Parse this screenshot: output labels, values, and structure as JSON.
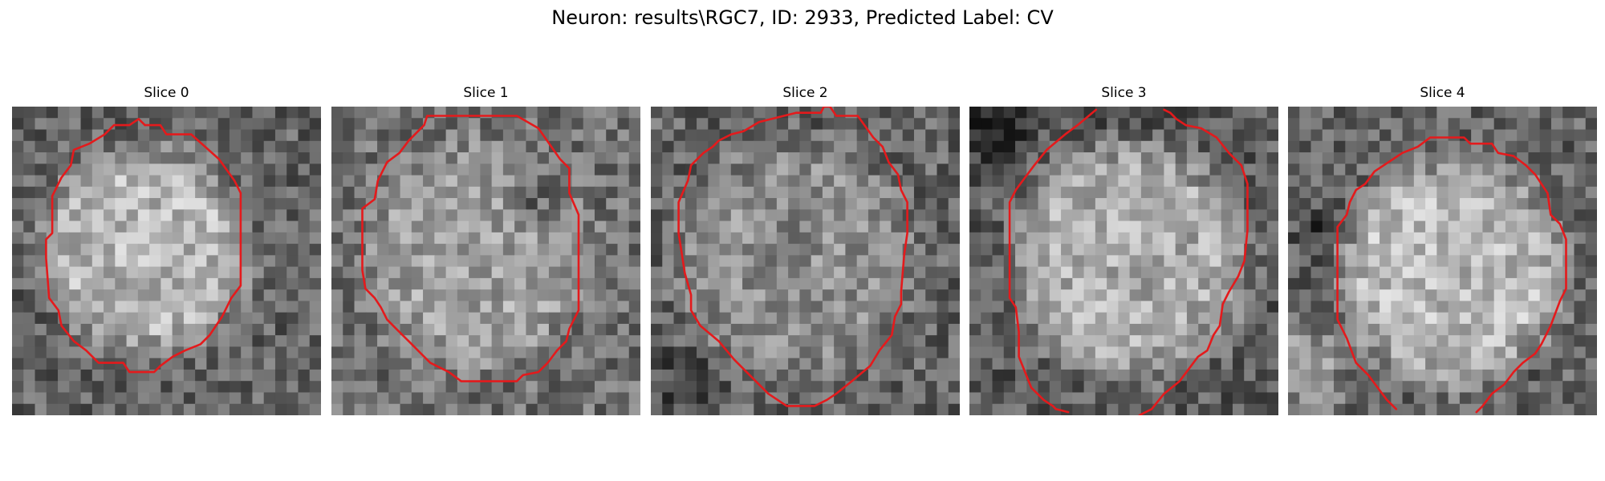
{
  "figure": {
    "title": "Neuron: results\\RGC7, ID: 2933, Predicted Label: CV"
  },
  "panels": [
    {
      "title": "Slice 0",
      "image_description": "grayscale noisy microscopy crop with a bright round cell body",
      "outline_color": "#e41a1c",
      "contour": [
        [
          0.43,
          0.06
        ],
        [
          0.48,
          0.06
        ],
        [
          0.5,
          0.09
        ],
        [
          0.58,
          0.09
        ],
        [
          0.67,
          0.17
        ],
        [
          0.72,
          0.24
        ],
        [
          0.74,
          0.28
        ],
        [
          0.74,
          0.58
        ],
        [
          0.71,
          0.62
        ],
        [
          0.68,
          0.68
        ],
        [
          0.64,
          0.74
        ],
        [
          0.61,
          0.77
        ],
        [
          0.56,
          0.79
        ],
        [
          0.52,
          0.81
        ],
        [
          0.48,
          0.84
        ],
        [
          0.46,
          0.86
        ],
        [
          0.38,
          0.86
        ],
        [
          0.36,
          0.83
        ],
        [
          0.28,
          0.83
        ],
        [
          0.24,
          0.79
        ],
        [
          0.2,
          0.76
        ],
        [
          0.16,
          0.71
        ],
        [
          0.15,
          0.66
        ],
        [
          0.12,
          0.62
        ],
        [
          0.11,
          0.49
        ],
        [
          0.11,
          0.43
        ],
        [
          0.13,
          0.41
        ],
        [
          0.13,
          0.29
        ],
        [
          0.16,
          0.23
        ],
        [
          0.19,
          0.19
        ],
        [
          0.2,
          0.14
        ],
        [
          0.25,
          0.12
        ],
        [
          0.3,
          0.09
        ],
        [
          0.33,
          0.06
        ],
        [
          0.38,
          0.06
        ],
        [
          0.41,
          0.04
        ],
        [
          0.43,
          0.06
        ]
      ]
    },
    {
      "title": "Slice 1",
      "image_description": "grayscale noisy microscopy crop with a bright round cell body",
      "outline_color": "#e41a1c",
      "contour": [
        [
          0.3,
          0.06
        ],
        [
          0.31,
          0.03
        ],
        [
          0.6,
          0.03
        ],
        [
          0.67,
          0.07
        ],
        [
          0.74,
          0.17
        ],
        [
          0.77,
          0.2
        ],
        [
          0.77,
          0.28
        ],
        [
          0.8,
          0.35
        ],
        [
          0.8,
          0.66
        ],
        [
          0.77,
          0.72
        ],
        [
          0.76,
          0.76
        ],
        [
          0.73,
          0.79
        ],
        [
          0.7,
          0.83
        ],
        [
          0.67,
          0.86
        ],
        [
          0.62,
          0.87
        ],
        [
          0.6,
          0.89
        ],
        [
          0.42,
          0.89
        ],
        [
          0.38,
          0.86
        ],
        [
          0.32,
          0.83
        ],
        [
          0.29,
          0.8
        ],
        [
          0.25,
          0.76
        ],
        [
          0.21,
          0.72
        ],
        [
          0.18,
          0.69
        ],
        [
          0.16,
          0.65
        ],
        [
          0.14,
          0.62
        ],
        [
          0.11,
          0.59
        ],
        [
          0.1,
          0.53
        ],
        [
          0.1,
          0.33
        ],
        [
          0.14,
          0.3
        ],
        [
          0.15,
          0.24
        ],
        [
          0.18,
          0.18
        ],
        [
          0.22,
          0.15
        ],
        [
          0.25,
          0.11
        ],
        [
          0.28,
          0.08
        ],
        [
          0.3,
          0.06
        ]
      ]
    },
    {
      "title": "Slice 2",
      "image_description": "grayscale noisy microscopy crop with a textured round cell body",
      "outline_color": "#e41a1c",
      "contour": [
        [
          0.3,
          0.08
        ],
        [
          0.35,
          0.05
        ],
        [
          0.39,
          0.04
        ],
        [
          0.47,
          0.02
        ],
        [
          0.55,
          0.02
        ],
        [
          0.56,
          0.0
        ],
        [
          0.58,
          0.0
        ],
        [
          0.6,
          0.03
        ],
        [
          0.67,
          0.03
        ],
        [
          0.72,
          0.1
        ],
        [
          0.75,
          0.13
        ],
        [
          0.77,
          0.18
        ],
        [
          0.8,
          0.22
        ],
        [
          0.81,
          0.27
        ],
        [
          0.83,
          0.31
        ],
        [
          0.83,
          0.41
        ],
        [
          0.82,
          0.48
        ],
        [
          0.81,
          0.6
        ],
        [
          0.81,
          0.64
        ],
        [
          0.79,
          0.68
        ],
        [
          0.78,
          0.74
        ],
        [
          0.74,
          0.79
        ],
        [
          0.71,
          0.84
        ],
        [
          0.65,
          0.89
        ],
        [
          0.6,
          0.93
        ],
        [
          0.57,
          0.95
        ],
        [
          0.53,
          0.97
        ],
        [
          0.44,
          0.97
        ],
        [
          0.38,
          0.93
        ],
        [
          0.33,
          0.88
        ],
        [
          0.27,
          0.82
        ],
        [
          0.22,
          0.76
        ],
        [
          0.16,
          0.71
        ],
        [
          0.13,
          0.66
        ],
        [
          0.13,
          0.61
        ],
        [
          0.11,
          0.54
        ],
        [
          0.09,
          0.41
        ],
        [
          0.09,
          0.31
        ],
        [
          0.12,
          0.24
        ],
        [
          0.13,
          0.19
        ],
        [
          0.17,
          0.15
        ],
        [
          0.2,
          0.13
        ],
        [
          0.22,
          0.11
        ],
        [
          0.26,
          0.09
        ],
        [
          0.3,
          0.08
        ]
      ]
    },
    {
      "title": "Slice 3",
      "image_description": "grayscale noisy microscopy crop with a bright round cell body partly cut by the edges",
      "outline_color": "#e41a1c",
      "contour_segments": [
        [
          [
            0.41,
            0.01
          ],
          [
            0.35,
            0.06
          ],
          [
            0.31,
            0.09
          ],
          [
            0.25,
            0.14
          ],
          [
            0.21,
            0.19
          ],
          [
            0.18,
            0.23
          ],
          [
            0.15,
            0.27
          ],
          [
            0.13,
            0.31
          ],
          [
            0.13,
            0.62
          ],
          [
            0.15,
            0.65
          ],
          [
            0.16,
            0.73
          ],
          [
            0.16,
            0.81
          ],
          [
            0.18,
            0.86
          ],
          [
            0.2,
            0.91
          ],
          [
            0.22,
            0.93
          ],
          [
            0.24,
            0.95
          ],
          [
            0.27,
            0.97
          ],
          [
            0.28,
            0.98
          ],
          [
            0.32,
            0.99
          ]
        ],
        [
          [
            0.55,
            1.0
          ],
          [
            0.59,
            0.98
          ],
          [
            0.63,
            0.93
          ],
          [
            0.68,
            0.89
          ],
          [
            0.71,
            0.85
          ],
          [
            0.74,
            0.81
          ],
          [
            0.77,
            0.79
          ],
          [
            0.79,
            0.74
          ],
          [
            0.81,
            0.71
          ],
          [
            0.82,
            0.64
          ],
          [
            0.84,
            0.6
          ],
          [
            0.87,
            0.55
          ],
          [
            0.89,
            0.5
          ],
          [
            0.9,
            0.4
          ],
          [
            0.9,
            0.25
          ],
          [
            0.88,
            0.19
          ],
          [
            0.84,
            0.15
          ],
          [
            0.8,
            0.1
          ],
          [
            0.75,
            0.07
          ],
          [
            0.7,
            0.06
          ],
          [
            0.67,
            0.04
          ],
          [
            0.65,
            0.02
          ],
          [
            0.63,
            0.01
          ]
        ]
      ]
    },
    {
      "title": "Slice 4",
      "image_description": "grayscale noisy microscopy crop with a bright round cell body and a bright neighbouring cell at the lower left",
      "outline_color": "#e41a1c",
      "contour_segments": [
        [
          [
            0.35,
            0.98
          ],
          [
            0.32,
            0.95
          ],
          [
            0.29,
            0.91
          ],
          [
            0.26,
            0.87
          ],
          [
            0.22,
            0.83
          ],
          [
            0.19,
            0.75
          ],
          [
            0.16,
            0.69
          ],
          [
            0.16,
            0.39
          ],
          [
            0.19,
            0.35
          ],
          [
            0.2,
            0.31
          ],
          [
            0.22,
            0.27
          ],
          [
            0.25,
            0.25
          ],
          [
            0.28,
            0.21
          ],
          [
            0.31,
            0.19
          ],
          [
            0.34,
            0.17
          ],
          [
            0.37,
            0.15
          ],
          [
            0.42,
            0.13
          ],
          [
            0.46,
            0.1
          ],
          [
            0.57,
            0.1
          ],
          [
            0.59,
            0.12
          ],
          [
            0.66,
            0.12
          ],
          [
            0.68,
            0.15
          ],
          [
            0.73,
            0.16
          ],
          [
            0.77,
            0.19
          ],
          [
            0.8,
            0.22
          ],
          [
            0.82,
            0.25
          ],
          [
            0.84,
            0.28
          ],
          [
            0.85,
            0.35
          ],
          [
            0.88,
            0.38
          ],
          [
            0.9,
            0.43
          ],
          [
            0.9,
            0.59
          ],
          [
            0.88,
            0.63
          ],
          [
            0.85,
            0.71
          ],
          [
            0.82,
            0.77
          ],
          [
            0.8,
            0.8
          ],
          [
            0.76,
            0.83
          ],
          [
            0.73,
            0.86
          ],
          [
            0.7,
            0.9
          ],
          [
            0.66,
            0.93
          ],
          [
            0.63,
            0.97
          ],
          [
            0.61,
            0.99
          ]
        ]
      ]
    }
  ]
}
